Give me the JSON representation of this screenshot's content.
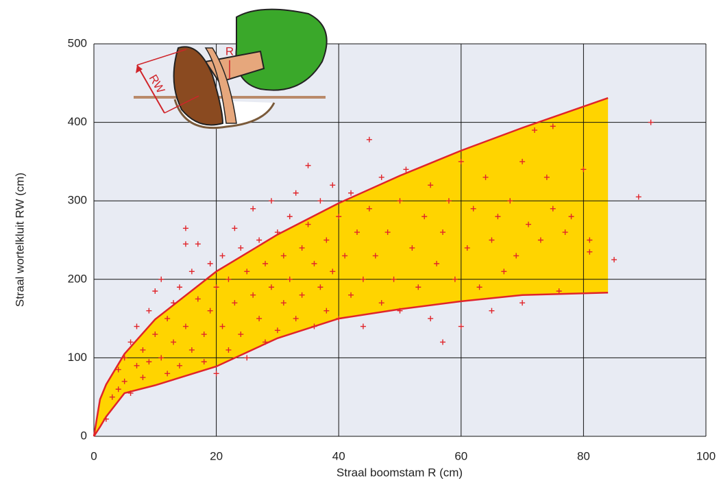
{
  "chart_data": {
    "type": "scatter",
    "x_label": "Straal boomstam R (cm)",
    "y_label": "Straal wortelkluit  RW (cm)",
    "illustration_labels": [
      "R",
      "RW"
    ],
    "xlim": [
      0,
      100
    ],
    "ylim": [
      0,
      500
    ],
    "xticks": [
      0,
      20,
      40,
      60,
      80,
      100
    ],
    "yticks": [
      0,
      100,
      200,
      300,
      400,
      500
    ],
    "grid": true,
    "color": "#e0242a",
    "envelope": {
      "color": "#ffd400",
      "line_color": "#e0242a",
      "x": [
        0,
        1,
        2,
        5,
        10,
        20,
        30,
        40,
        50,
        60,
        70,
        84
      ],
      "upper": [
        0,
        47,
        66,
        105,
        149,
        210,
        257,
        297,
        332,
        364,
        393,
        431
      ],
      "lower": [
        0,
        12,
        25,
        55,
        65,
        89,
        125,
        150,
        162,
        172,
        180,
        183
      ]
    },
    "x": [
      2,
      3,
      4,
      4,
      5,
      5,
      6,
      6,
      7,
      7,
      8,
      8,
      9,
      9,
      10,
      10,
      11,
      11,
      12,
      12,
      13,
      13,
      14,
      14,
      15,
      15,
      15,
      16,
      16,
      17,
      17,
      18,
      18,
      19,
      19,
      20,
      20,
      21,
      21,
      22,
      22,
      23,
      23,
      24,
      24,
      25,
      25,
      26,
      26,
      27,
      27,
      28,
      28,
      29,
      29,
      30,
      30,
      31,
      31,
      32,
      32,
      33,
      33,
      34,
      34,
      35,
      35,
      36,
      36,
      37,
      37,
      38,
      38,
      39,
      39,
      40,
      40,
      41,
      42,
      42,
      43,
      44,
      44,
      45,
      45,
      46,
      47,
      47,
      48,
      49,
      50,
      50,
      51,
      52,
      53,
      54,
      55,
      55,
      56,
      57,
      57,
      58,
      59,
      60,
      60,
      61,
      62,
      63,
      64,
      65,
      65,
      66,
      67,
      68,
      69,
      70,
      70,
      71,
      72,
      73,
      74,
      75,
      75,
      76,
      77,
      78,
      80,
      81,
      81,
      85,
      89,
      91
    ],
    "values": [
      22,
      50,
      60,
      85,
      70,
      100,
      55,
      120,
      90,
      140,
      75,
      110,
      95,
      160,
      130,
      185,
      200,
      100,
      150,
      80,
      170,
      120,
      90,
      190,
      265,
      245,
      140,
      110,
      210,
      245,
      175,
      130,
      95,
      220,
      160,
      80,
      190,
      140,
      230,
      110,
      200,
      265,
      170,
      130,
      240,
      100,
      210,
      290,
      180,
      150,
      250,
      120,
      220,
      300,
      190,
      135,
      260,
      170,
      230,
      280,
      200,
      150,
      310,
      240,
      180,
      345,
      270,
      140,
      220,
      300,
      190,
      250,
      160,
      320,
      210,
      280,
      150,
      230,
      180,
      310,
      260,
      140,
      200,
      378,
      290,
      230,
      170,
      330,
      260,
      200,
      300,
      160,
      340,
      240,
      190,
      280,
      150,
      320,
      220,
      260,
      120,
      300,
      200,
      140,
      350,
      240,
      290,
      190,
      330,
      250,
      160,
      280,
      210,
      300,
      230,
      350,
      170,
      270,
      390,
      250,
      330,
      395,
      290,
      185,
      260,
      280,
      340,
      250,
      235,
      225,
      305,
      400
    ]
  }
}
